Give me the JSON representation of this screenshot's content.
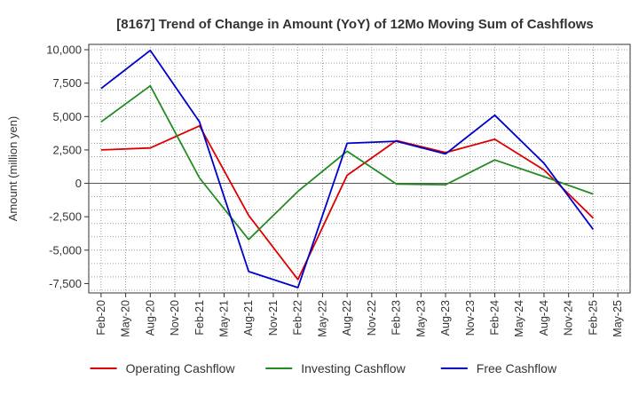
{
  "chart_data": {
    "type": "line",
    "title": "[8167]  Trend of Change in Amount (YoY) of 12Mo Moving Sum of Cashflows",
    "xlabel": "",
    "ylabel": "Amount (million yen)",
    "ylim": [
      -8200,
      10400
    ],
    "yticks": [
      10000,
      7500,
      5000,
      2500,
      0,
      -2500,
      -5000,
      -7500
    ],
    "ytick_labels": [
      "10,000",
      "7,500",
      "5,000",
      "2,500",
      "0",
      "-2,500",
      "-5,000",
      "-7,500"
    ],
    "x_labels": [
      "Feb-20",
      "May-20",
      "Aug-20",
      "Nov-20",
      "Feb-21",
      "May-21",
      "Aug-21",
      "Nov-21",
      "Feb-22",
      "May-22",
      "Aug-22",
      "Nov-22",
      "Feb-23",
      "May-23",
      "Aug-23",
      "Nov-23",
      "Feb-24",
      "May-24",
      "Aug-24",
      "Nov-24",
      "Feb-25",
      "May-25"
    ],
    "grid": true,
    "legend_position": "bottom",
    "series": [
      {
        "name": "Operating Cashflow",
        "color": "#dd0000",
        "points": [
          [
            0,
            2500
          ],
          [
            2,
            2650
          ],
          [
            4,
            4300
          ],
          [
            6,
            -2400
          ],
          [
            8,
            -7200
          ],
          [
            10,
            600
          ],
          [
            12,
            3200
          ],
          [
            14,
            2300
          ],
          [
            16,
            3300
          ],
          [
            18,
            1000
          ],
          [
            20,
            -2600
          ]
        ]
      },
      {
        "name": "Investing Cashflow",
        "color": "#228B22",
        "points": [
          [
            0,
            4600
          ],
          [
            2,
            7300
          ],
          [
            4,
            400
          ],
          [
            6,
            -4200
          ],
          [
            8,
            -600
          ],
          [
            10,
            2400
          ],
          [
            12,
            -50
          ],
          [
            14,
            -100
          ],
          [
            16,
            1750
          ],
          [
            18,
            500
          ],
          [
            20,
            -800
          ]
        ]
      },
      {
        "name": "Free Cashflow",
        "color": "#0000cc",
        "points": [
          [
            0,
            7100
          ],
          [
            2,
            9950
          ],
          [
            4,
            4600
          ],
          [
            6,
            -6600
          ],
          [
            8,
            -7800
          ],
          [
            10,
            3000
          ],
          [
            12,
            3150
          ],
          [
            14,
            2200
          ],
          [
            16,
            5100
          ],
          [
            18,
            1500
          ],
          [
            20,
            -3450
          ]
        ]
      }
    ]
  }
}
